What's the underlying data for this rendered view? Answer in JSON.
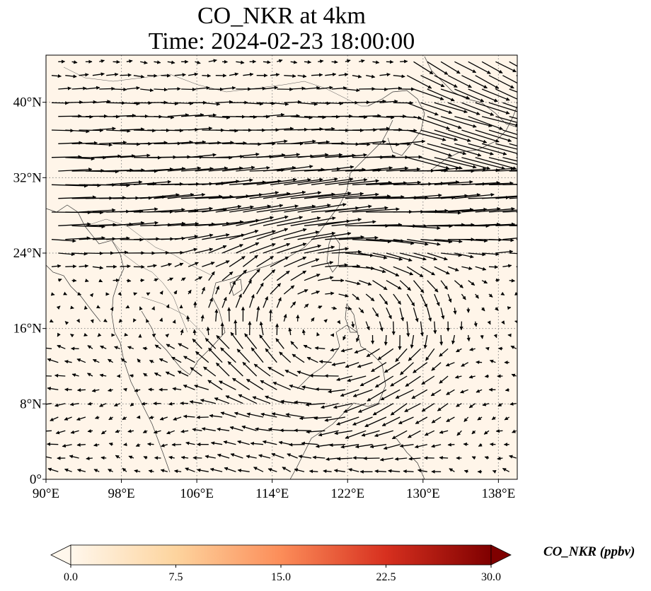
{
  "title": {
    "line1": "CO_NKR at 4km",
    "line2": "Time: 2024-02-23 18:00:00"
  },
  "map": {
    "lon_range": [
      90,
      140
    ],
    "lat_range": [
      0,
      45
    ],
    "background_color": "#fff5e9",
    "gridlines": "dotted",
    "x_ticks": [
      {
        "value": 90,
        "label": "90°E"
      },
      {
        "value": 98,
        "label": "98°E"
      },
      {
        "value": 106,
        "label": "106°E"
      },
      {
        "value": 114,
        "label": "114°E"
      },
      {
        "value": 122,
        "label": "122°E"
      },
      {
        "value": 130,
        "label": "130°E"
      },
      {
        "value": 138,
        "label": "138°E"
      }
    ],
    "y_ticks": [
      {
        "value": 0,
        "label": "0°"
      },
      {
        "value": 8,
        "label": "8°N"
      },
      {
        "value": 16,
        "label": "16°N"
      },
      {
        "value": 24,
        "label": "24°N"
      },
      {
        "value": 32,
        "label": "32°N"
      },
      {
        "value": 40,
        "label": "40°N"
      }
    ],
    "wind_vectors": "quiver field: strong westerly jet 24°N–34°N, anticyclonic circulation near 120°E 16°N, weak easterlies south of 16°N"
  },
  "colorbar": {
    "label": "CO_NKR (ppbv)",
    "colormap": "OrRd",
    "colors": [
      "#fff7ec",
      "#fdd49e",
      "#fc8d59",
      "#d7301f",
      "#7f0000"
    ],
    "range": [
      0,
      30
    ],
    "ticks": [
      "0.0",
      "7.5",
      "15.0",
      "22.5",
      "30.0"
    ],
    "extend": "both"
  }
}
